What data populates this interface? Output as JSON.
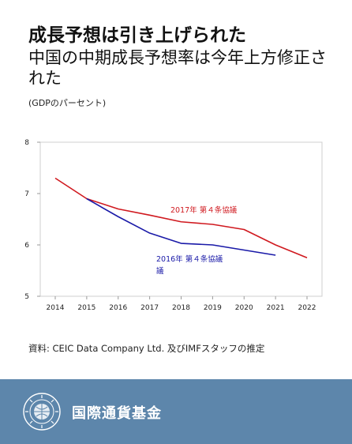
{
  "header": {
    "title": "成長予想は引き上げられた",
    "subtitle": "中国の中期成長予想率は今年上方修正された",
    "unit": "(GDPのパーセント)"
  },
  "chart_data": {
    "type": "line",
    "title": "成長予想は引き上げられた",
    "subtitle": "中国の中期成長予想率は今年上方修正された",
    "xlabel": "",
    "ylabel": "(GDPのパーセント)",
    "xlim": [
      2014,
      2022
    ],
    "ylim": [
      5,
      8
    ],
    "x_ticks": [
      "2014",
      "2015",
      "2016",
      "2017",
      "2018",
      "2019",
      "2020",
      "2021",
      "2022"
    ],
    "y_ticks": [
      "5",
      "6",
      "7",
      "8"
    ],
    "grid": false,
    "series": [
      {
        "name": "2017年 第４条協議",
        "color": "#d0191f",
        "x": [
          2014,
          2015,
          2016,
          2017,
          2018,
          2019,
          2020,
          2021,
          2022
        ],
        "values": [
          7.3,
          6.9,
          6.7,
          6.58,
          6.45,
          6.4,
          6.3,
          6.0,
          5.75
        ]
      },
      {
        "name": "2016年 第４条協議",
        "color": "#1a1aa8",
        "x": [
          2015,
          2016,
          2017,
          2018,
          2019,
          2020,
          2021
        ],
        "values": [
          6.9,
          6.55,
          6.23,
          6.03,
          6.0,
          5.9,
          5.8
        ]
      }
    ],
    "annotations": {
      "red_line1": "2017年 第４条協議",
      "blue_line1": "2016年 第４条協議",
      "blue_line2": "議"
    }
  },
  "footer": {
    "source": "資料: CEIC Data Company Ltd. 及びIMFスタッフの推定",
    "org_name": "国際通貨基金",
    "bg_color": "#5d86ab",
    "logo_icon": "imf-seal-icon"
  }
}
